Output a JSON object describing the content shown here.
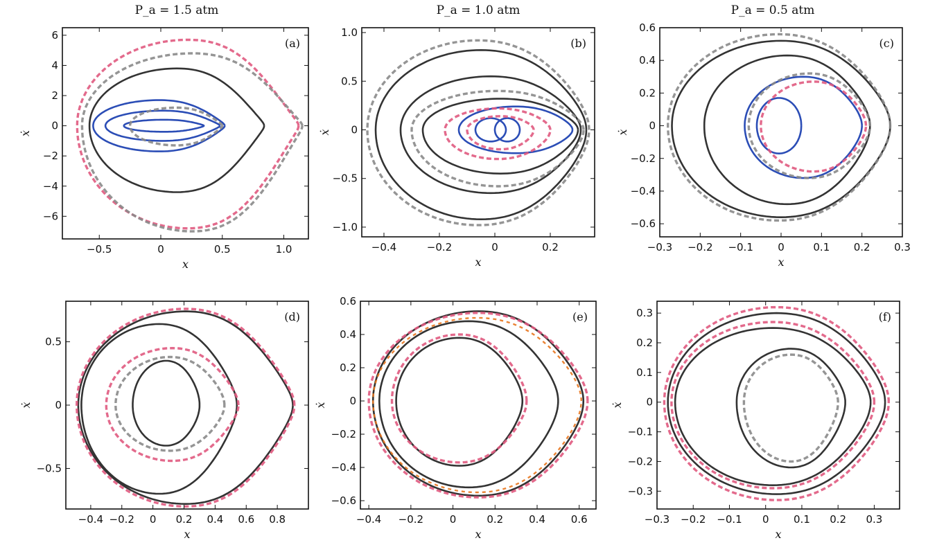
{
  "column_titles": [
    "P_a = 1.5 atm",
    "P_a = 1.0 atm",
    "P_a = 0.5 atm"
  ],
  "colors": {
    "simulated": "#333333",
    "simulated_top_row_inner": "#2b4db6",
    "reference_pink": "#e05a80",
    "reference_gray": "#8a8a8a",
    "reference_orange": "#e8761e"
  },
  "chart_data": [
    {
      "type": "line",
      "panel_label": "(a)",
      "xlabel": "x",
      "ylabel": "ẋ",
      "xlim": [
        -0.8,
        1.2
      ],
      "ylim": [
        -7.5,
        6.5
      ],
      "xticks": [
        -0.5,
        0,
        0.5,
        1.0
      ],
      "xtick_labels": [
        "−0.5",
        "0",
        "0.5",
        "1.0"
      ],
      "yticks": [
        -6,
        -4,
        -2,
        0,
        2,
        4,
        6
      ],
      "ytick_labels": [
        "−6",
        "−4",
        "−2",
        "0",
        "2",
        "4",
        "6"
      ],
      "series": [
        {
          "style": "simulated",
          "loops": [
            {
              "xmin": -0.58,
              "xmax": 0.84,
              "ymax": 3.8,
              "ymin": -4.4,
              "pk": 0.7
            }
          ]
        },
        {
          "style": "simulated_top_row_inner",
          "loops": [
            {
              "xmin": -0.55,
              "xmax": 0.52,
              "ymax": 1.7,
              "ymin": -1.7,
              "pk": 0.6
            },
            {
              "xmin": -0.45,
              "xmax": 0.48,
              "ymax": 1.0,
              "ymin": -1.0,
              "pk": 0.6
            },
            {
              "xmin": -0.3,
              "xmax": 0.35,
              "ymax": 0.4,
              "ymin": -0.4,
              "pk": 0.5
            }
          ]
        },
        {
          "style": "reference_pink",
          "loops": [
            {
              "xmin": -0.68,
              "xmax": 1.12,
              "ymax": 5.7,
              "ymin": -6.8,
              "pk": 0.75
            }
          ]
        },
        {
          "style": "reference_gray",
          "loops": [
            {
              "xmin": -0.64,
              "xmax": 1.15,
              "ymax": 4.8,
              "ymin": -7.0,
              "pk": 0.75
            },
            {
              "xmin": -0.25,
              "xmax": 0.5,
              "ymax": 1.2,
              "ymin": -1.3,
              "pk": 0.6
            }
          ]
        }
      ]
    },
    {
      "type": "line",
      "panel_label": "(b)",
      "xlabel": "x",
      "ylabel": "ẋ",
      "xlim": [
        -0.48,
        0.36
      ],
      "ylim": [
        -1.1,
        1.05
      ],
      "xticks": [
        -0.4,
        -0.2,
        0,
        0.2
      ],
      "xtick_labels": [
        "−0.4",
        "−0.2",
        "0",
        "0.2"
      ],
      "yticks": [
        -1.0,
        -0.5,
        0,
        0.5,
        1.0
      ],
      "ytick_labels": [
        "−1.0",
        "−0.5",
        "0",
        "0.5",
        "1.0"
      ],
      "series": [
        {
          "style": "simulated",
          "loops": [
            {
              "xmin": -0.43,
              "xmax": 0.33,
              "ymax": 0.82,
              "ymin": -0.92,
              "pk": 0.3
            },
            {
              "xmin": -0.34,
              "xmax": 0.31,
              "ymax": 0.55,
              "ymin": -0.65,
              "pk": 0.3
            },
            {
              "xmin": -0.26,
              "xmax": 0.3,
              "ymax": 0.32,
              "ymin": -0.45,
              "pk": 0.3
            }
          ]
        },
        {
          "style": "simulated_top_row_inner",
          "loops": [
            {
              "xmin": -0.07,
              "xmax": 0.04,
              "ymax": 0.12,
              "ymin": -0.12,
              "pk": 0.0
            },
            {
              "xmin": 0.0,
              "xmax": 0.09,
              "ymax": 0.12,
              "ymin": -0.12,
              "pk": 0.0
            },
            {
              "xmin": -0.13,
              "xmax": 0.28,
              "ymax": 0.24,
              "ymin": -0.24,
              "pk": 0.3
            }
          ]
        },
        {
          "style": "reference_gray",
          "loops": [
            {
              "xmin": -0.46,
              "xmax": 0.34,
              "ymax": 0.92,
              "ymin": -0.98,
              "pk": 0.3
            },
            {
              "xmin": -0.3,
              "xmax": 0.32,
              "ymax": 0.4,
              "ymin": -0.58,
              "pk": 0.3
            }
          ]
        },
        {
          "style": "reference_pink",
          "loops": [
            {
              "xmin": -0.18,
              "xmax": 0.2,
              "ymax": 0.22,
              "ymin": -0.3,
              "pk": 0.2
            },
            {
              "xmin": -0.1,
              "xmax": 0.14,
              "ymax": 0.14,
              "ymin": -0.2,
              "pk": 0.2
            }
          ]
        }
      ]
    },
    {
      "type": "line",
      "panel_label": "(c)",
      "xlabel": "x",
      "ylabel": "ẋ",
      "xlim": [
        -0.3,
        0.3
      ],
      "ylim": [
        -0.68,
        0.6
      ],
      "xticks": [
        -0.3,
        -0.2,
        -0.1,
        0,
        0.1,
        0.2,
        0.3
      ],
      "xtick_labels": [
        "−0.3",
        "−0.2",
        "−0.1",
        "0",
        "0.1",
        "0.2",
        "0.3"
      ],
      "yticks": [
        -0.6,
        -0.4,
        -0.2,
        0,
        0.2,
        0.4,
        0.6
      ],
      "ytick_labels": [
        "−0.6",
        "−0.4",
        "−0.2",
        "0",
        "0.2",
        "0.4",
        "0.6"
      ],
      "series": [
        {
          "style": "simulated",
          "loops": [
            {
              "xmin": -0.27,
              "xmax": 0.27,
              "ymax": 0.52,
              "ymin": -0.56,
              "pk": 0.3
            },
            {
              "xmin": -0.19,
              "xmax": 0.22,
              "ymax": 0.43,
              "ymin": -0.48,
              "pk": 0.3
            }
          ]
        },
        {
          "style": "simulated_top_row_inner",
          "loops": [
            {
              "xmin": -0.09,
              "xmax": 0.2,
              "ymax": 0.3,
              "ymin": -0.32,
              "pk": 0.3
            },
            {
              "xmin": -0.06,
              "xmax": 0.05,
              "ymax": 0.17,
              "ymin": -0.17,
              "pk": 0.0
            }
          ]
        },
        {
          "style": "reference_gray",
          "loops": [
            {
              "xmin": -0.28,
              "xmax": 0.27,
              "ymax": 0.56,
              "ymin": -0.58,
              "pk": 0.3
            },
            {
              "xmin": -0.08,
              "xmax": 0.22,
              "ymax": 0.32,
              "ymin": -0.32,
              "pk": 0.3
            }
          ]
        },
        {
          "style": "reference_pink",
          "loops": [
            {
              "xmin": -0.05,
              "xmax": 0.21,
              "ymax": 0.27,
              "ymin": -0.28,
              "pk": 0.3
            }
          ]
        }
      ]
    },
    {
      "type": "line",
      "panel_label": "(d)",
      "xlabel": "x",
      "ylabel": "ẋ",
      "xlim": [
        -0.56,
        1.0
      ],
      "ylim": [
        -0.82,
        0.82
      ],
      "xticks": [
        -0.4,
        -0.2,
        0,
        0.2,
        0.4,
        0.6,
        0.8
      ],
      "xtick_labels": [
        "−0.4",
        "−0.2",
        "0",
        "0.2",
        "0.4",
        "0.6",
        "0.8"
      ],
      "yticks": [
        -0.5,
        0,
        0.5
      ],
      "ytick_labels": [
        "−0.5",
        "0",
        "0.5"
      ],
      "series": [
        {
          "style": "simulated",
          "loops": [
            {
              "xmin": -0.48,
              "xmax": 0.9,
              "ymax": 0.74,
              "ymin": -0.78,
              "pk": 0.5
            },
            {
              "xmin": -0.46,
              "xmax": 0.54,
              "ymax": 0.64,
              "ymin": -0.7,
              "pk": 0.4
            },
            {
              "xmin": -0.13,
              "xmax": 0.3,
              "ymax": 0.35,
              "ymin": -0.32,
              "pk": 0.2
            }
          ]
        },
        {
          "style": "reference_pink",
          "loops": [
            {
              "xmin": -0.49,
              "xmax": 0.91,
              "ymax": 0.76,
              "ymin": -0.8,
              "pk": 0.5
            },
            {
              "xmin": -0.3,
              "xmax": 0.55,
              "ymax": 0.45,
              "ymin": -0.44,
              "pk": 0.4
            }
          ]
        },
        {
          "style": "reference_gray",
          "loops": [
            {
              "xmin": -0.24,
              "xmax": 0.46,
              "ymax": 0.38,
              "ymin": -0.36,
              "pk": 0.3
            }
          ]
        }
      ]
    },
    {
      "type": "line",
      "panel_label": "(e)",
      "xlabel": "x",
      "ylabel": "ẋ",
      "xlim": [
        -0.44,
        0.68
      ],
      "ylim": [
        -0.65,
        0.6
      ],
      "xticks": [
        -0.4,
        -0.2,
        0,
        0.2,
        0.4,
        0.6
      ],
      "xtick_labels": [
        "−0.4",
        "−0.2",
        "0",
        "0.2",
        "0.4",
        "0.6"
      ],
      "yticks": [
        -0.6,
        -0.4,
        -0.2,
        0,
        0.2,
        0.4,
        0.6
      ],
      "ytick_labels": [
        "−0.6",
        "−0.4",
        "−0.2",
        "0",
        "0.2",
        "0.4",
        "0.6"
      ],
      "series": [
        {
          "style": "simulated",
          "loops": [
            {
              "xmin": -0.38,
              "xmax": 0.62,
              "ymax": 0.54,
              "ymin": -0.57,
              "pk": 0.3
            },
            {
              "xmin": -0.35,
              "xmax": 0.5,
              "ymax": 0.48,
              "ymin": -0.52,
              "pk": 0.3
            },
            {
              "xmin": -0.27,
              "xmax": 0.33,
              "ymax": 0.38,
              "ymin": -0.39,
              "pk": 0.3
            }
          ]
        },
        {
          "style": "reference_pink",
          "loops": [
            {
              "xmin": -0.4,
              "xmax": 0.64,
              "ymax": 0.53,
              "ymin": -0.58,
              "pk": 0.3
            },
            {
              "xmin": -0.29,
              "xmax": 0.35,
              "ymax": 0.4,
              "ymin": -0.37,
              "pk": 0.3
            }
          ]
        },
        {
          "style": "reference_orange",
          "loops": [
            {
              "xmin": -0.38,
              "xmax": 0.61,
              "ymax": 0.5,
              "ymin": -0.55,
              "pk": 0.3
            }
          ]
        }
      ]
    },
    {
      "type": "line",
      "panel_label": "(f)",
      "xlabel": "x",
      "ylabel": "ẋ",
      "xlim": [
        -0.3,
        0.37
      ],
      "ylim": [
        -0.36,
        0.34
      ],
      "xticks": [
        -0.3,
        -0.2,
        -0.1,
        0,
        0.1,
        0.2,
        0.3
      ],
      "xtick_labels": [
        "−0.3",
        "−0.2",
        "−0.1",
        "0",
        "0.1",
        "0.2",
        "0.3"
      ],
      "yticks": [
        -0.3,
        -0.2,
        -0.1,
        0,
        0.1,
        0.2,
        0.3
      ],
      "ytick_labels": [
        "−0.3",
        "−0.2",
        "−0.1",
        "0",
        "0.1",
        "0.2",
        "0.3"
      ],
      "series": [
        {
          "style": "simulated",
          "loops": [
            {
              "xmin": -0.27,
              "xmax": 0.33,
              "ymax": 0.3,
              "ymin": -0.31,
              "pk": 0.3
            },
            {
              "xmin": -0.25,
              "xmax": 0.29,
              "ymax": 0.25,
              "ymin": -0.28,
              "pk": 0.3
            },
            {
              "xmin": -0.08,
              "xmax": 0.22,
              "ymax": 0.18,
              "ymin": -0.22,
              "pk": 0.3
            }
          ]
        },
        {
          "style": "reference_pink",
          "loops": [
            {
              "xmin": -0.28,
              "xmax": 0.34,
              "ymax": 0.32,
              "ymin": -0.33,
              "pk": 0.3
            },
            {
              "xmin": -0.26,
              "xmax": 0.3,
              "ymax": 0.27,
              "ymin": -0.29,
              "pk": 0.3
            }
          ]
        },
        {
          "style": "reference_gray",
          "loops": [
            {
              "xmin": -0.06,
              "xmax": 0.2,
              "ymax": 0.16,
              "ymin": -0.2,
              "pk": 0.3
            }
          ]
        }
      ]
    }
  ]
}
